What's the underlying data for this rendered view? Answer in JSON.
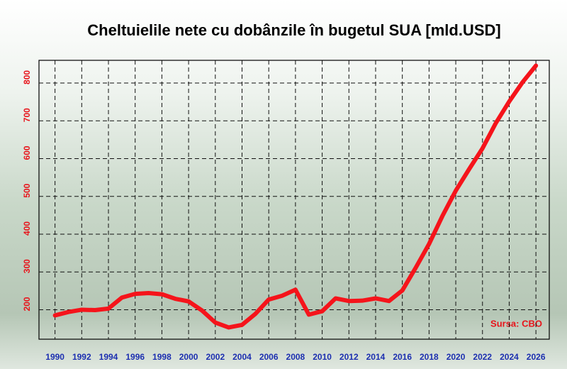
{
  "chart_data": {
    "type": "line",
    "title": "Cheltuielile nete cu dobânzile în bugetul SUA [mld.USD]",
    "annotation": "Sursa: CBO",
    "x": [
      1990,
      1991,
      1992,
      1993,
      1994,
      1995,
      1996,
      1997,
      1998,
      1999,
      2000,
      2001,
      2002,
      2003,
      2004,
      2005,
      2006,
      2007,
      2008,
      2009,
      2010,
      2011,
      2012,
      2013,
      2014,
      2015,
      2016,
      2017,
      2018,
      2019,
      2020,
      2021,
      2022,
      2023,
      2024,
      2025,
      2026
    ],
    "series": [
      {
        "name": "Cheltuieli nete cu dobânzile",
        "color": "#f5141b",
        "values": [
          185,
          194,
          200,
          199,
          203,
          232,
          242,
          244,
          241,
          229,
          222,
          198,
          166,
          153,
          160,
          189,
          227,
          237,
          253,
          187,
          196,
          230,
          223,
          224,
          230,
          223,
          251,
          311,
          374,
          448,
          515,
          572,
          627,
          694,
          751,
          802,
          846
        ]
      }
    ],
    "xlim": [
      1988.8,
      2027
    ],
    "xticks": [
      1990,
      1992,
      1994,
      1996,
      1998,
      2000,
      2002,
      2004,
      2006,
      2008,
      2010,
      2012,
      2014,
      2016,
      2018,
      2020,
      2022,
      2024,
      2026
    ],
    "ylim": [
      122,
      860
    ],
    "yticks": [
      200,
      300,
      400,
      500,
      600,
      700,
      800
    ],
    "grid": true
  }
}
